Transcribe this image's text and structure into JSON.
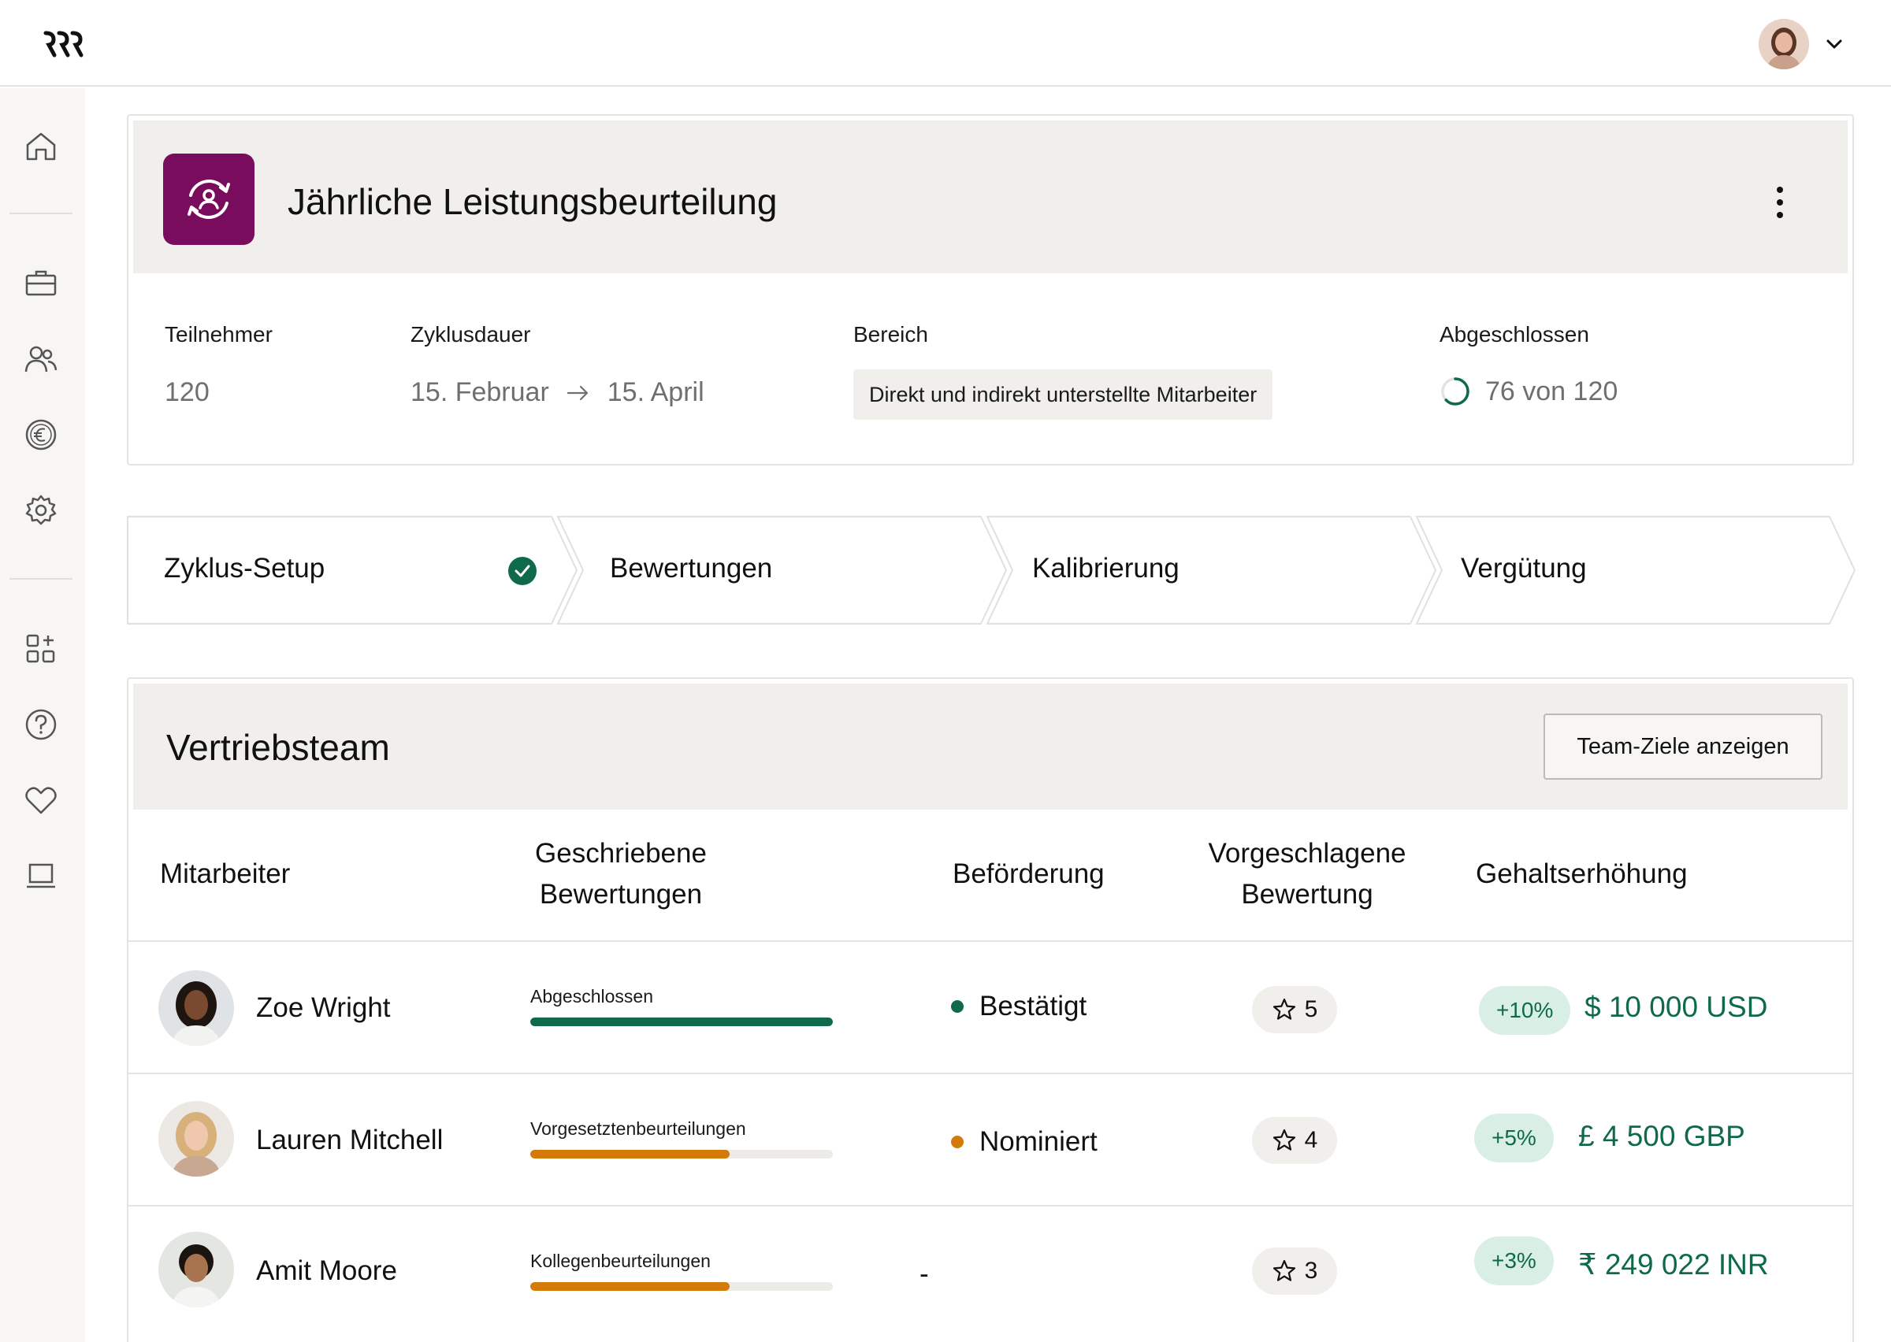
{
  "colors": {
    "accent_green": "#0f6a4a",
    "brand_plum": "#7a0c5e",
    "warning_orange": "#d47a08",
    "chip_bg": "#f1efec"
  },
  "topbar": {
    "logo": "rippling-logo",
    "user_avatar": "user-avatar",
    "menu_icon": "chevron-down-icon"
  },
  "sidebar": {
    "items": [
      {
        "name": "home-icon"
      },
      {
        "name": "briefcase-icon"
      },
      {
        "name": "people-icon"
      },
      {
        "name": "euro-icon"
      },
      {
        "name": "gear-icon"
      },
      {
        "name": "apps-add-icon"
      },
      {
        "name": "help-icon"
      },
      {
        "name": "heart-icon"
      },
      {
        "name": "laptop-icon"
      }
    ]
  },
  "cycle": {
    "title": "Jährliche Leistungsbeurteilung",
    "participants_label": "Teilnehmer",
    "participants_value": "120",
    "duration_label": "Zyklusdauer",
    "duration_start": "15. Februar",
    "duration_end": "15. April",
    "scope_label": "Bereich",
    "scope_value": "Direkt und indirekt unterstellte Mitarbeiter",
    "completed_label": "Abgeschlossen",
    "completed_value": "76 von 120",
    "completed_fraction": 0.63
  },
  "steps": [
    {
      "label": "Zyklus-Setup",
      "done": true
    },
    {
      "label": "Bewertungen",
      "done": false
    },
    {
      "label": "Kalibrierung",
      "done": false
    },
    {
      "label": "Vergütung",
      "done": false
    }
  ],
  "team": {
    "title": "Vertriebsteam",
    "goals_button": "Team-Ziele anzeigen",
    "columns": {
      "employee": "Mitarbeiter",
      "written_1": "Geschriebene",
      "written_2": "Bewertungen",
      "promotion": "Beförderung",
      "rating_1": "Vorgeschlagene",
      "rating_2": "Bewertung",
      "raise": "Gehaltserhöhung"
    },
    "rows": [
      {
        "name": "Zoe Wright",
        "progress_label": "Abgeschlossen",
        "progress": 1.0,
        "progress_color": "#0f6a4a",
        "promotion": "Bestätigt",
        "promotion_color": "#0f6a4a",
        "rating": "5",
        "raise_pct": "+10%",
        "raise_amount": "$ 10 000 USD"
      },
      {
        "name": "Lauren Mitchell",
        "progress_label": "Vorgesetztenbeurteilungen",
        "progress": 0.66,
        "progress_color": "#d47a08",
        "promotion": "Nominiert",
        "promotion_color": "#d47a08",
        "rating": "4",
        "raise_pct": "+5%",
        "raise_amount": "£ 4 500 GBP"
      },
      {
        "name": "Amit Moore",
        "progress_label": "Kollegenbeurteilungen",
        "progress": 0.66,
        "progress_color": "#d47a08",
        "promotion": "-",
        "promotion_color": "",
        "rating": "3",
        "raise_pct": "+3%",
        "raise_amount": "₹ 249 022 INR"
      }
    ]
  }
}
